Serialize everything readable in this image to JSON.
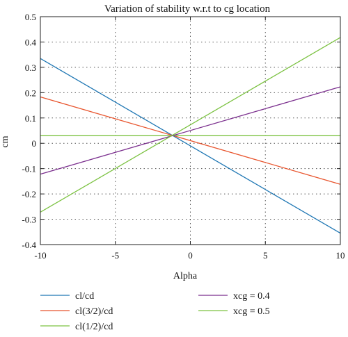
{
  "chart_data": {
    "type": "line",
    "title": "Variation of stability w.r.t to cg location",
    "xlabel": "Alpha",
    "ylabel": "cm",
    "xlim": [
      -10,
      10
    ],
    "ylim": [
      -0.4,
      0.5
    ],
    "xticks": [
      -10,
      -5,
      0,
      5,
      10
    ],
    "yticks": [
      -0.4,
      -0.3,
      -0.2,
      -0.1,
      0,
      0.1,
      0.2,
      0.3,
      0.4,
      0.5
    ],
    "xtick_labels": [
      "-10",
      "-5",
      "0",
      "5",
      "10"
    ],
    "ytick_labels": [
      "-0.4",
      "-0.3",
      "-0.2",
      "-0.1",
      "0",
      "0.1",
      "0.2",
      "0.3",
      "0.4",
      "0.5"
    ],
    "grid": true,
    "legend_placement": "bottom",
    "series": [
      {
        "name": "cl/cd",
        "color": "#1f77b4",
        "x": [
          -10,
          10
        ],
        "y": [
          0.335,
          -0.355
        ]
      },
      {
        "name": "cl(3/2)/cd",
        "color": "#e8552e",
        "x": [
          -10,
          10
        ],
        "y": [
          0.183,
          -0.162
        ]
      },
      {
        "name": "cl(1/2)/cd",
        "color": "#7cc242",
        "x": [
          -10,
          10
        ],
        "y": [
          0.03,
          0.03
        ]
      },
      {
        "name": "xcg = 0.4",
        "color": "#7b2f8e",
        "x": [
          -10,
          10
        ],
        "y": [
          -0.122,
          0.223
        ]
      },
      {
        "name": "xcg = 0.5",
        "color": "#7cc242",
        "x": [
          -10,
          10
        ],
        "y": [
          -0.272,
          0.418
        ]
      }
    ]
  }
}
